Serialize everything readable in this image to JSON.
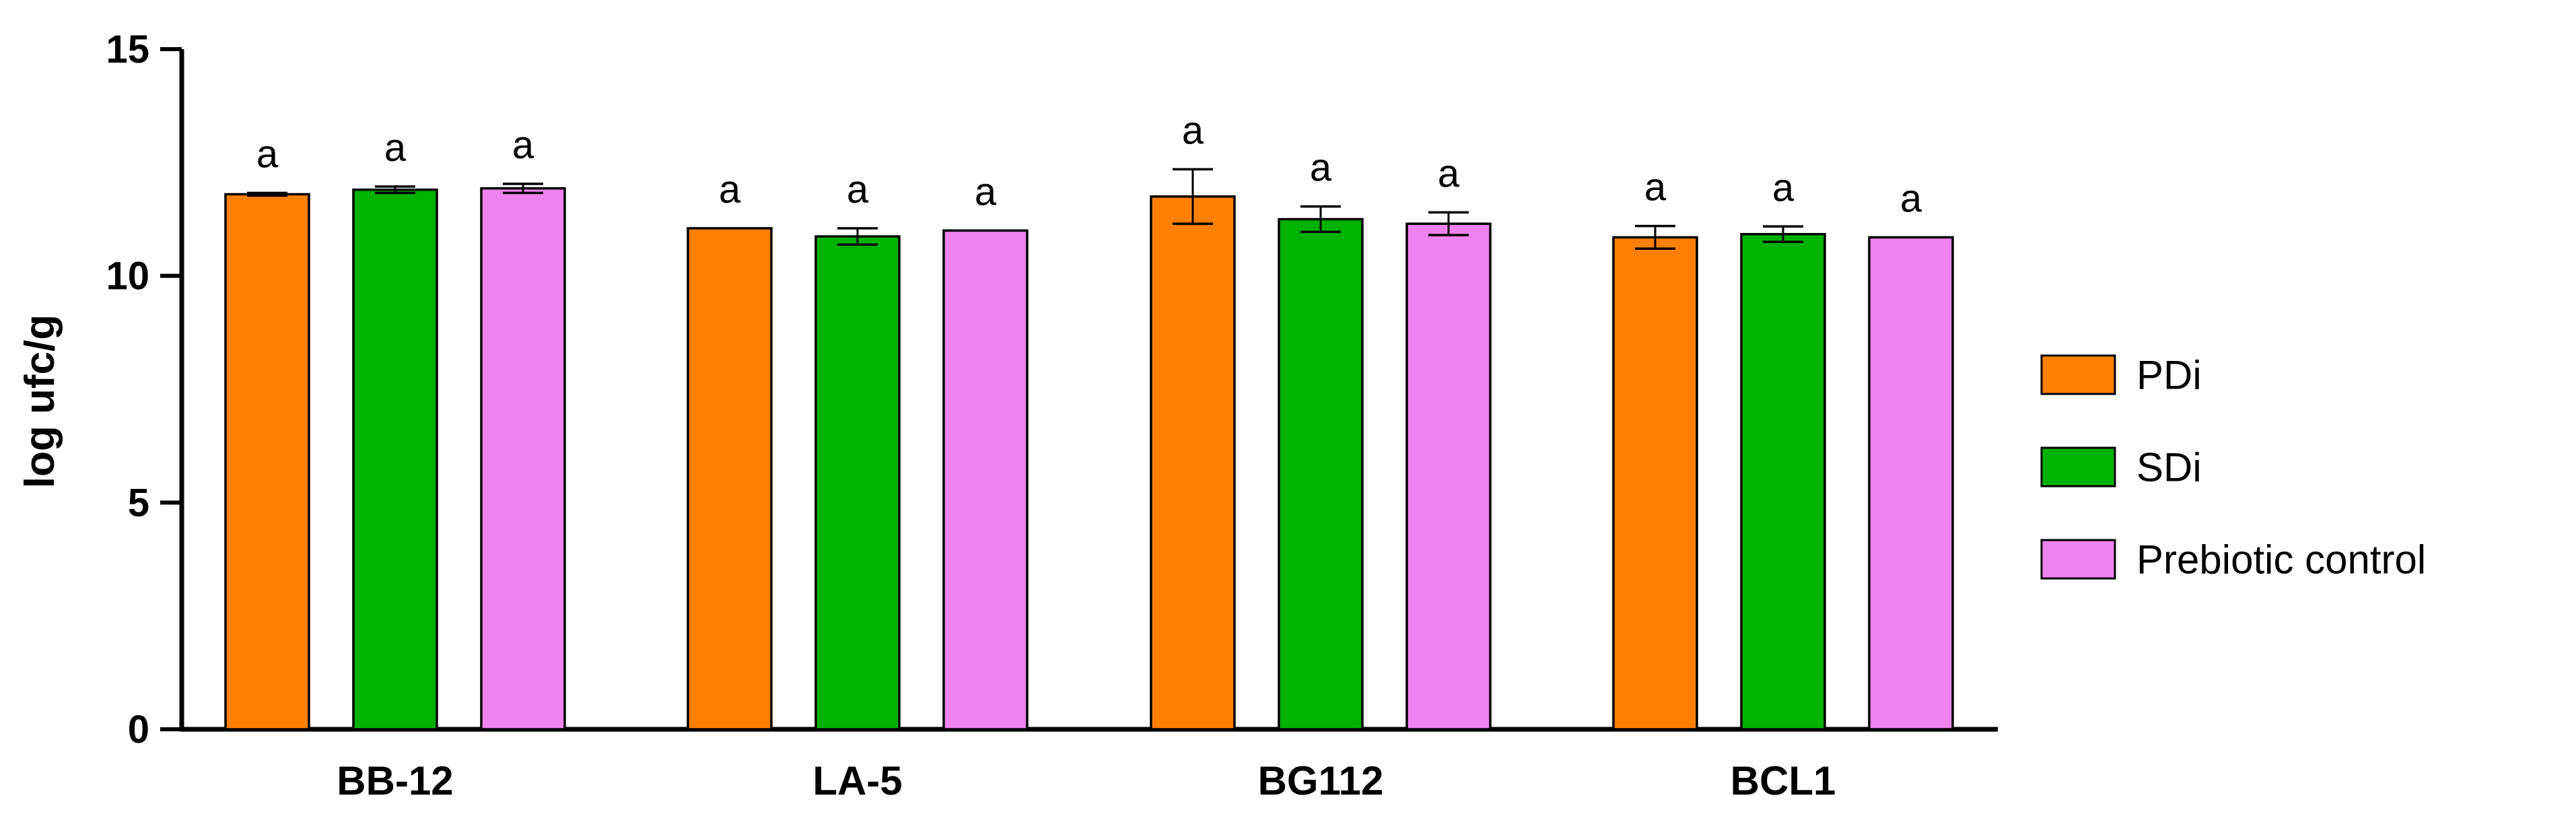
{
  "chart_data": {
    "type": "bar",
    "title": "",
    "xlabel": "",
    "ylabel": "log ufc/g",
    "ylim": [
      0,
      15
    ],
    "yticks": [
      0,
      5,
      10,
      15
    ],
    "grid": false,
    "legend_position": "right",
    "categories": [
      "BB-12",
      "LA-5",
      "BG112",
      "BCL1"
    ],
    "series": [
      {
        "name": "PDi",
        "color": "#ff7f00",
        "values": [
          11.8,
          11.05,
          11.75,
          10.85
        ],
        "errors": [
          0.03,
          0.0,
          0.6,
          0.25
        ],
        "labels": [
          "a",
          "a",
          "a",
          "a"
        ]
      },
      {
        "name": "SDi",
        "color": "#00b200",
        "values": [
          11.9,
          10.87,
          11.25,
          10.92
        ],
        "errors": [
          0.07,
          0.18,
          0.28,
          0.17
        ],
        "labels": [
          "a",
          "a",
          "a",
          "a"
        ]
      },
      {
        "name": "Prebiotic control",
        "color": "#ee82ee",
        "values": [
          11.93,
          11.0,
          11.15,
          10.85
        ],
        "errors": [
          0.1,
          0.0,
          0.25,
          0.0
        ],
        "labels": [
          "a",
          "a",
          "a",
          "a"
        ]
      }
    ]
  }
}
